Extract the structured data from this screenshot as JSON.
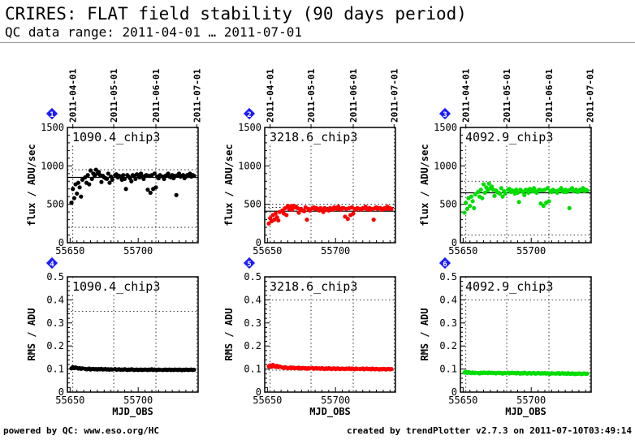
{
  "header": {
    "title": "CRIRES: FLAT field stability (90 days period)",
    "subtitle": "QC data range: 2011-04-01 … 2011-07-01"
  },
  "footer": {
    "left": "powered by QC: www.eso.org/HC",
    "right": "created by trendPlotter v2.7.3 on 2011-07-10T03:49:14"
  },
  "colors": {
    "black": "#000000",
    "red": "#ff0000",
    "green": "#00dd00",
    "badge": "#1a1aff"
  },
  "date_ticks": [
    "2011-04-01",
    "2011-05-01",
    "2011-06-01",
    "2011-07-01"
  ],
  "chart_data": [
    {
      "type": "scatter",
      "panel": 1,
      "badge": "1",
      "label": "1090.4_chip3",
      "color": "#000000",
      "xlabel": "",
      "ylabel": "flux / ADU/sec",
      "xlim": [
        55648,
        55744
      ],
      "ylim": [
        0,
        1500
      ],
      "x_ticks": [
        55650,
        55700
      ],
      "y_ticks": [
        0,
        500,
        1000,
        1500
      ],
      "ref_lines": [
        850,
        200,
        950
      ],
      "x": [
        55651,
        55652,
        55653,
        55654,
        55655,
        55656,
        55657,
        55658,
        55659,
        55661,
        55662,
        55663,
        55664,
        55665,
        55666,
        55667,
        55668,
        55669,
        55670,
        55671,
        55672,
        55673,
        55674,
        55675,
        55676,
        55677,
        55678,
        55679,
        55680,
        55681,
        55683,
        55684,
        55685,
        55686,
        55687,
        55688,
        55689,
        55690,
        55691,
        55692,
        55693,
        55694,
        55695,
        55696,
        55697,
        55698,
        55699,
        55700,
        55701,
        55702,
        55703,
        55704,
        55705,
        55706,
        55707,
        55708,
        55709,
        55710,
        55711,
        55712,
        55713,
        55714,
        55715,
        55716,
        55718,
        55719,
        55720,
        55721,
        55722,
        55723,
        55724,
        55725,
        55726,
        55727,
        55728,
        55729,
        55730,
        55731,
        55732,
        55733,
        55734,
        55735,
        55736,
        55737,
        55738,
        55739,
        55740,
        55741
      ],
      "y": [
        520,
        700,
        580,
        760,
        640,
        780,
        720,
        600,
        820,
        850,
        780,
        880,
        760,
        940,
        830,
        900,
        870,
        950,
        900,
        920,
        880,
        790,
        870,
        850,
        840,
        830,
        900,
        780,
        860,
        820,
        880,
        890,
        850,
        870,
        860,
        820,
        880,
        830,
        700,
        880,
        860,
        840,
        800,
        880,
        870,
        830,
        890,
        880,
        850,
        900,
        860,
        830,
        870,
        880,
        690,
        870,
        650,
        880,
        700,
        900,
        720,
        860,
        840,
        880,
        860,
        830,
        870,
        880,
        900,
        860,
        850,
        880,
        840,
        870,
        620,
        880,
        900,
        860,
        870,
        880,
        840,
        860,
        880,
        870,
        900,
        860,
        880,
        870
      ]
    },
    {
      "type": "scatter",
      "panel": 2,
      "badge": "2",
      "label": "3218.6_chip3",
      "color": "#ff0000",
      "xlabel": "",
      "ylabel": "flux / ADU/sec",
      "xlim": [
        55648,
        55744
      ],
      "ylim": [
        0,
        1500
      ],
      "x_ticks": [
        55650,
        55700
      ],
      "y_ticks": [
        0,
        500,
        1000,
        1500
      ],
      "ref_lines": [
        410,
        500,
        460
      ],
      "x": [
        55651,
        55652,
        55653,
        55654,
        55655,
        55656,
        55657,
        55658,
        55659,
        55661,
        55662,
        55663,
        55664,
        55665,
        55666,
        55667,
        55668,
        55669,
        55670,
        55671,
        55672,
        55673,
        55674,
        55675,
        55676,
        55677,
        55678,
        55679,
        55680,
        55681,
        55683,
        55684,
        55685,
        55686,
        55687,
        55688,
        55689,
        55690,
        55691,
        55692,
        55693,
        55694,
        55695,
        55696,
        55697,
        55698,
        55699,
        55700,
        55701,
        55702,
        55703,
        55704,
        55705,
        55706,
        55707,
        55708,
        55709,
        55710,
        55711,
        55712,
        55713,
        55714,
        55715,
        55716,
        55718,
        55719,
        55720,
        55721,
        55722,
        55723,
        55724,
        55725,
        55726,
        55727,
        55728,
        55729,
        55730,
        55731,
        55732,
        55733,
        55734,
        55735,
        55736,
        55737,
        55738,
        55739,
        55740,
        55741
      ],
      "y": [
        250,
        320,
        280,
        360,
        300,
        380,
        330,
        290,
        400,
        420,
        380,
        450,
        360,
        480,
        440,
        470,
        430,
        480,
        460,
        470,
        450,
        390,
        440,
        430,
        420,
        410,
        460,
        300,
        440,
        420,
        450,
        460,
        440,
        450,
        440,
        420,
        450,
        430,
        400,
        450,
        440,
        430,
        420,
        450,
        440,
        430,
        460,
        450,
        440,
        470,
        440,
        430,
        450,
        450,
        340,
        440,
        310,
        450,
        360,
        460,
        380,
        440,
        430,
        450,
        440,
        430,
        450,
        450,
        470,
        440,
        440,
        450,
        430,
        440,
        300,
        450,
        460,
        440,
        450,
        450,
        430,
        440,
        450,
        440,
        470,
        440,
        450,
        440
      ]
    },
    {
      "type": "scatter",
      "panel": 3,
      "badge": "3",
      "label": "4092.9_chip3",
      "color": "#00dd00",
      "xlabel": "",
      "ylabel": "flux / ADU/sec",
      "xlim": [
        55648,
        55744
      ],
      "ylim": [
        0,
        1500
      ],
      "x_ticks": [
        55650,
        55700
      ],
      "y_ticks": [
        0,
        500,
        1000,
        1500
      ],
      "ref_lines": [
        650,
        100,
        800
      ],
      "x": [
        55651,
        55652,
        55653,
        55654,
        55655,
        55656,
        55657,
        55658,
        55659,
        55661,
        55662,
        55663,
        55664,
        55665,
        55666,
        55667,
        55668,
        55669,
        55670,
        55671,
        55672,
        55673,
        55674,
        55675,
        55676,
        55677,
        55678,
        55679,
        55680,
        55681,
        55683,
        55684,
        55685,
        55686,
        55687,
        55688,
        55689,
        55690,
        55691,
        55692,
        55693,
        55694,
        55695,
        55696,
        55697,
        55698,
        55699,
        55700,
        55701,
        55702,
        55703,
        55704,
        55705,
        55706,
        55707,
        55708,
        55709,
        55710,
        55711,
        55712,
        55713,
        55714,
        55715,
        55716,
        55718,
        55719,
        55720,
        55721,
        55722,
        55723,
        55724,
        55725,
        55726,
        55727,
        55728,
        55729,
        55730,
        55731,
        55732,
        55733,
        55734,
        55735,
        55736,
        55737,
        55738,
        55739,
        55740,
        55741
      ],
      "y": [
        390,
        520,
        440,
        580,
        480,
        600,
        540,
        450,
        630,
        660,
        600,
        690,
        580,
        760,
        650,
        720,
        680,
        770,
        710,
        730,
        690,
        610,
        680,
        660,
        650,
        640,
        710,
        600,
        670,
        640,
        690,
        700,
        660,
        680,
        670,
        640,
        690,
        650,
        530,
        690,
        670,
        660,
        620,
        690,
        680,
        650,
        700,
        690,
        670,
        710,
        670,
        650,
        680,
        690,
        510,
        680,
        480,
        690,
        520,
        710,
        540,
        670,
        660,
        690,
        670,
        650,
        680,
        690,
        710,
        670,
        660,
        690,
        660,
        680,
        450,
        690,
        710,
        670,
        680,
        690,
        660,
        670,
        690,
        680,
        710,
        670,
        690,
        680
      ]
    },
    {
      "type": "scatter",
      "panel": 4,
      "badge": "4",
      "label": "1090.4_chip3",
      "color": "#000000",
      "xlabel": "MJD_OBS",
      "ylabel": "RMS / ADU",
      "xlim": [
        55648,
        55744
      ],
      "ylim": [
        0,
        0.5
      ],
      "x_ticks": [
        55650,
        55700
      ],
      "y_ticks": [
        0,
        0.1,
        0.2,
        0.3,
        0.4,
        0.5
      ],
      "ref_lines": [
        0.35
      ],
      "x": [
        55651,
        55652,
        55653,
        55654,
        55655,
        55656,
        55657,
        55658,
        55659,
        55661,
        55662,
        55663,
        55664,
        55665,
        55666,
        55667,
        55668,
        55669,
        55670,
        55671,
        55672,
        55673,
        55674,
        55675,
        55676,
        55677,
        55678,
        55679,
        55680,
        55681,
        55683,
        55684,
        55685,
        55686,
        55687,
        55688,
        55689,
        55690,
        55691,
        55692,
        55693,
        55694,
        55695,
        55696,
        55697,
        55698,
        55699,
        55700,
        55701,
        55702,
        55703,
        55704,
        55705,
        55706,
        55707,
        55708,
        55709,
        55710,
        55711,
        55712,
        55713,
        55714,
        55715,
        55716,
        55718,
        55719,
        55720,
        55721,
        55722,
        55723,
        55724,
        55725,
        55726,
        55727,
        55728,
        55729,
        55730,
        55731,
        55732,
        55733,
        55734,
        55735,
        55736,
        55737,
        55738,
        55739,
        55740,
        55741
      ],
      "y": [
        0.103,
        0.108,
        0.104,
        0.107,
        0.105,
        0.102,
        0.104,
        0.101,
        0.103,
        0.101,
        0.099,
        0.1,
        0.102,
        0.098,
        0.1,
        0.101,
        0.099,
        0.1,
        0.098,
        0.1,
        0.099,
        0.101,
        0.098,
        0.099,
        0.1,
        0.098,
        0.099,
        0.097,
        0.099,
        0.098,
        0.1,
        0.097,
        0.098,
        0.099,
        0.097,
        0.098,
        0.097,
        0.099,
        0.098,
        0.096,
        0.098,
        0.097,
        0.099,
        0.098,
        0.096,
        0.097,
        0.098,
        0.096,
        0.097,
        0.098,
        0.096,
        0.097,
        0.098,
        0.097,
        0.096,
        0.098,
        0.097,
        0.099,
        0.096,
        0.098,
        0.097,
        0.096,
        0.098,
        0.097,
        0.096,
        0.097,
        0.098,
        0.096,
        0.097,
        0.098,
        0.096,
        0.097,
        0.096,
        0.098,
        0.097,
        0.096,
        0.098,
        0.097,
        0.095,
        0.097,
        0.096,
        0.098,
        0.097,
        0.096,
        0.097,
        0.098,
        0.096,
        0.097
      ]
    },
    {
      "type": "scatter",
      "panel": 5,
      "badge": "5",
      "label": "3218.6_chip3",
      "color": "#ff0000",
      "xlabel": "MJD_OBS",
      "ylabel": "RMS / ADU",
      "xlim": [
        55648,
        55744
      ],
      "ylim": [
        0,
        0.5
      ],
      "x_ticks": [
        55650,
        55700
      ],
      "y_ticks": [
        0,
        0.1,
        0.2,
        0.3,
        0.4,
        0.5
      ],
      "ref_lines": [
        0.4,
        0.095
      ],
      "x": [
        55651,
        55652,
        55653,
        55654,
        55655,
        55656,
        55657,
        55658,
        55659,
        55661,
        55662,
        55663,
        55664,
        55665,
        55666,
        55667,
        55668,
        55669,
        55670,
        55671,
        55672,
        55673,
        55674,
        55675,
        55676,
        55677,
        55678,
        55679,
        55680,
        55681,
        55683,
        55684,
        55685,
        55686,
        55687,
        55688,
        55689,
        55690,
        55691,
        55692,
        55693,
        55694,
        55695,
        55696,
        55697,
        55698,
        55699,
        55700,
        55701,
        55702,
        55703,
        55704,
        55705,
        55706,
        55707,
        55708,
        55709,
        55710,
        55711,
        55712,
        55713,
        55714,
        55715,
        55716,
        55718,
        55719,
        55720,
        55721,
        55722,
        55723,
        55724,
        55725,
        55726,
        55727,
        55728,
        55729,
        55730,
        55731,
        55732,
        55733,
        55734,
        55735,
        55736,
        55737,
        55738,
        55739,
        55740,
        55741
      ],
      "y": [
        0.112,
        0.116,
        0.11,
        0.118,
        0.113,
        0.109,
        0.114,
        0.108,
        0.111,
        0.107,
        0.104,
        0.108,
        0.106,
        0.103,
        0.105,
        0.107,
        0.104,
        0.106,
        0.103,
        0.105,
        0.104,
        0.106,
        0.102,
        0.104,
        0.105,
        0.103,
        0.104,
        0.101,
        0.104,
        0.103,
        0.105,
        0.101,
        0.103,
        0.104,
        0.102,
        0.103,
        0.101,
        0.104,
        0.102,
        0.1,
        0.103,
        0.101,
        0.104,
        0.102,
        0.1,
        0.102,
        0.103,
        0.1,
        0.102,
        0.103,
        0.1,
        0.101,
        0.102,
        0.101,
        0.1,
        0.102,
        0.101,
        0.103,
        0.1,
        0.102,
        0.101,
        0.099,
        0.102,
        0.101,
        0.1,
        0.101,
        0.102,
        0.099,
        0.101,
        0.102,
        0.1,
        0.101,
        0.099,
        0.102,
        0.1,
        0.099,
        0.101,
        0.1,
        0.098,
        0.1,
        0.099,
        0.101,
        0.1,
        0.098,
        0.1,
        0.101,
        0.099,
        0.1
      ]
    },
    {
      "type": "scatter",
      "panel": 6,
      "badge": "6",
      "label": "4092.9_chip3",
      "color": "#00dd00",
      "xlabel": "MJD_OBS",
      "ylabel": "RMS / ADU",
      "xlim": [
        55648,
        55744
      ],
      "ylim": [
        0,
        0.5
      ],
      "x_ticks": [
        55650,
        55700
      ],
      "y_ticks": [
        0,
        0.1,
        0.2,
        0.3,
        0.4,
        0.5
      ],
      "ref_lines": [
        0.4,
        0.08
      ],
      "x": [
        55651,
        55652,
        55653,
        55654,
        55655,
        55656,
        55657,
        55658,
        55659,
        55661,
        55662,
        55663,
        55664,
        55665,
        55666,
        55667,
        55668,
        55669,
        55670,
        55671,
        55672,
        55673,
        55674,
        55675,
        55676,
        55677,
        55678,
        55679,
        55680,
        55681,
        55683,
        55684,
        55685,
        55686,
        55687,
        55688,
        55689,
        55690,
        55691,
        55692,
        55693,
        55694,
        55695,
        55696,
        55697,
        55698,
        55699,
        55700,
        55701,
        55702,
        55703,
        55704,
        55705,
        55706,
        55707,
        55708,
        55709,
        55710,
        55711,
        55712,
        55713,
        55714,
        55715,
        55716,
        55718,
        55719,
        55720,
        55721,
        55722,
        55723,
        55724,
        55725,
        55726,
        55727,
        55728,
        55729,
        55730,
        55731,
        55732,
        55733,
        55734,
        55735,
        55736,
        55737,
        55738,
        55739,
        55740,
        55741
      ],
      "y": [
        0.085,
        0.088,
        0.083,
        0.087,
        0.084,
        0.082,
        0.085,
        0.082,
        0.084,
        0.083,
        0.081,
        0.084,
        0.082,
        0.085,
        0.083,
        0.084,
        0.082,
        0.085,
        0.083,
        0.084,
        0.082,
        0.083,
        0.081,
        0.083,
        0.084,
        0.082,
        0.083,
        0.08,
        0.083,
        0.082,
        0.084,
        0.081,
        0.083,
        0.084,
        0.082,
        0.083,
        0.081,
        0.084,
        0.082,
        0.08,
        0.083,
        0.081,
        0.084,
        0.082,
        0.08,
        0.082,
        0.083,
        0.08,
        0.082,
        0.083,
        0.08,
        0.081,
        0.083,
        0.082,
        0.08,
        0.082,
        0.081,
        0.083,
        0.08,
        0.082,
        0.081,
        0.079,
        0.082,
        0.081,
        0.08,
        0.081,
        0.083,
        0.079,
        0.081,
        0.082,
        0.08,
        0.081,
        0.079,
        0.082,
        0.08,
        0.079,
        0.081,
        0.08,
        0.078,
        0.08,
        0.079,
        0.081,
        0.08,
        0.078,
        0.08,
        0.081,
        0.079,
        0.08
      ]
    }
  ]
}
